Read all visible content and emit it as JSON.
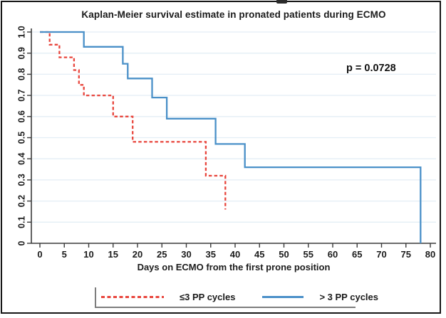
{
  "figure": {
    "background": "#ffffff",
    "frame_color": "#161616"
  },
  "annotation": {
    "p_value": "p = 0.0728"
  },
  "chart_data": {
    "type": "line",
    "subtype": "kaplan-meier-step",
    "title": "Kaplan-Meier survival estimate in pronated patients during ECMO",
    "xlabel": "Days on ECMO from the first prone position",
    "ylabel": "",
    "xlim": [
      0,
      80
    ],
    "ylim": [
      0,
      1.0
    ],
    "xticks": [
      0,
      5,
      10,
      15,
      20,
      25,
      30,
      35,
      40,
      45,
      50,
      55,
      60,
      65,
      70,
      75,
      80
    ],
    "ytick_labels": [
      "1.0",
      "0.9",
      "0.8",
      "0.7",
      "0.6",
      "0.5",
      "0.4",
      "0.3",
      "0.2",
      "0.1",
      "0"
    ],
    "grid": "horizontal",
    "gridline_color": "#e3eef5",
    "axis_color": "#3a3a3a",
    "legend_position": "bottom",
    "annotation_text": "p = 0.0728",
    "series": [
      {
        "name": "≤3 PP cycles",
        "color": "#e8453c",
        "style": "dashed",
        "points": [
          [
            0,
            1.0
          ],
          [
            2,
            0.94
          ],
          [
            4,
            0.88
          ],
          [
            7,
            0.82
          ],
          [
            8,
            0.75
          ],
          [
            9,
            0.7
          ],
          [
            15,
            0.6
          ],
          [
            19,
            0.48
          ],
          [
            34,
            0.32
          ],
          [
            38,
            0.16
          ]
        ]
      },
      {
        "name": "> 3 PP cycles",
        "color": "#4a90c8",
        "style": "solid",
        "points": [
          [
            0,
            1.0
          ],
          [
            9,
            0.93
          ],
          [
            17,
            0.85
          ],
          [
            18,
            0.78
          ],
          [
            23,
            0.69
          ],
          [
            26,
            0.59
          ],
          [
            36,
            0.47
          ],
          [
            42,
            0.36
          ],
          [
            78,
            0.0
          ]
        ]
      }
    ]
  }
}
